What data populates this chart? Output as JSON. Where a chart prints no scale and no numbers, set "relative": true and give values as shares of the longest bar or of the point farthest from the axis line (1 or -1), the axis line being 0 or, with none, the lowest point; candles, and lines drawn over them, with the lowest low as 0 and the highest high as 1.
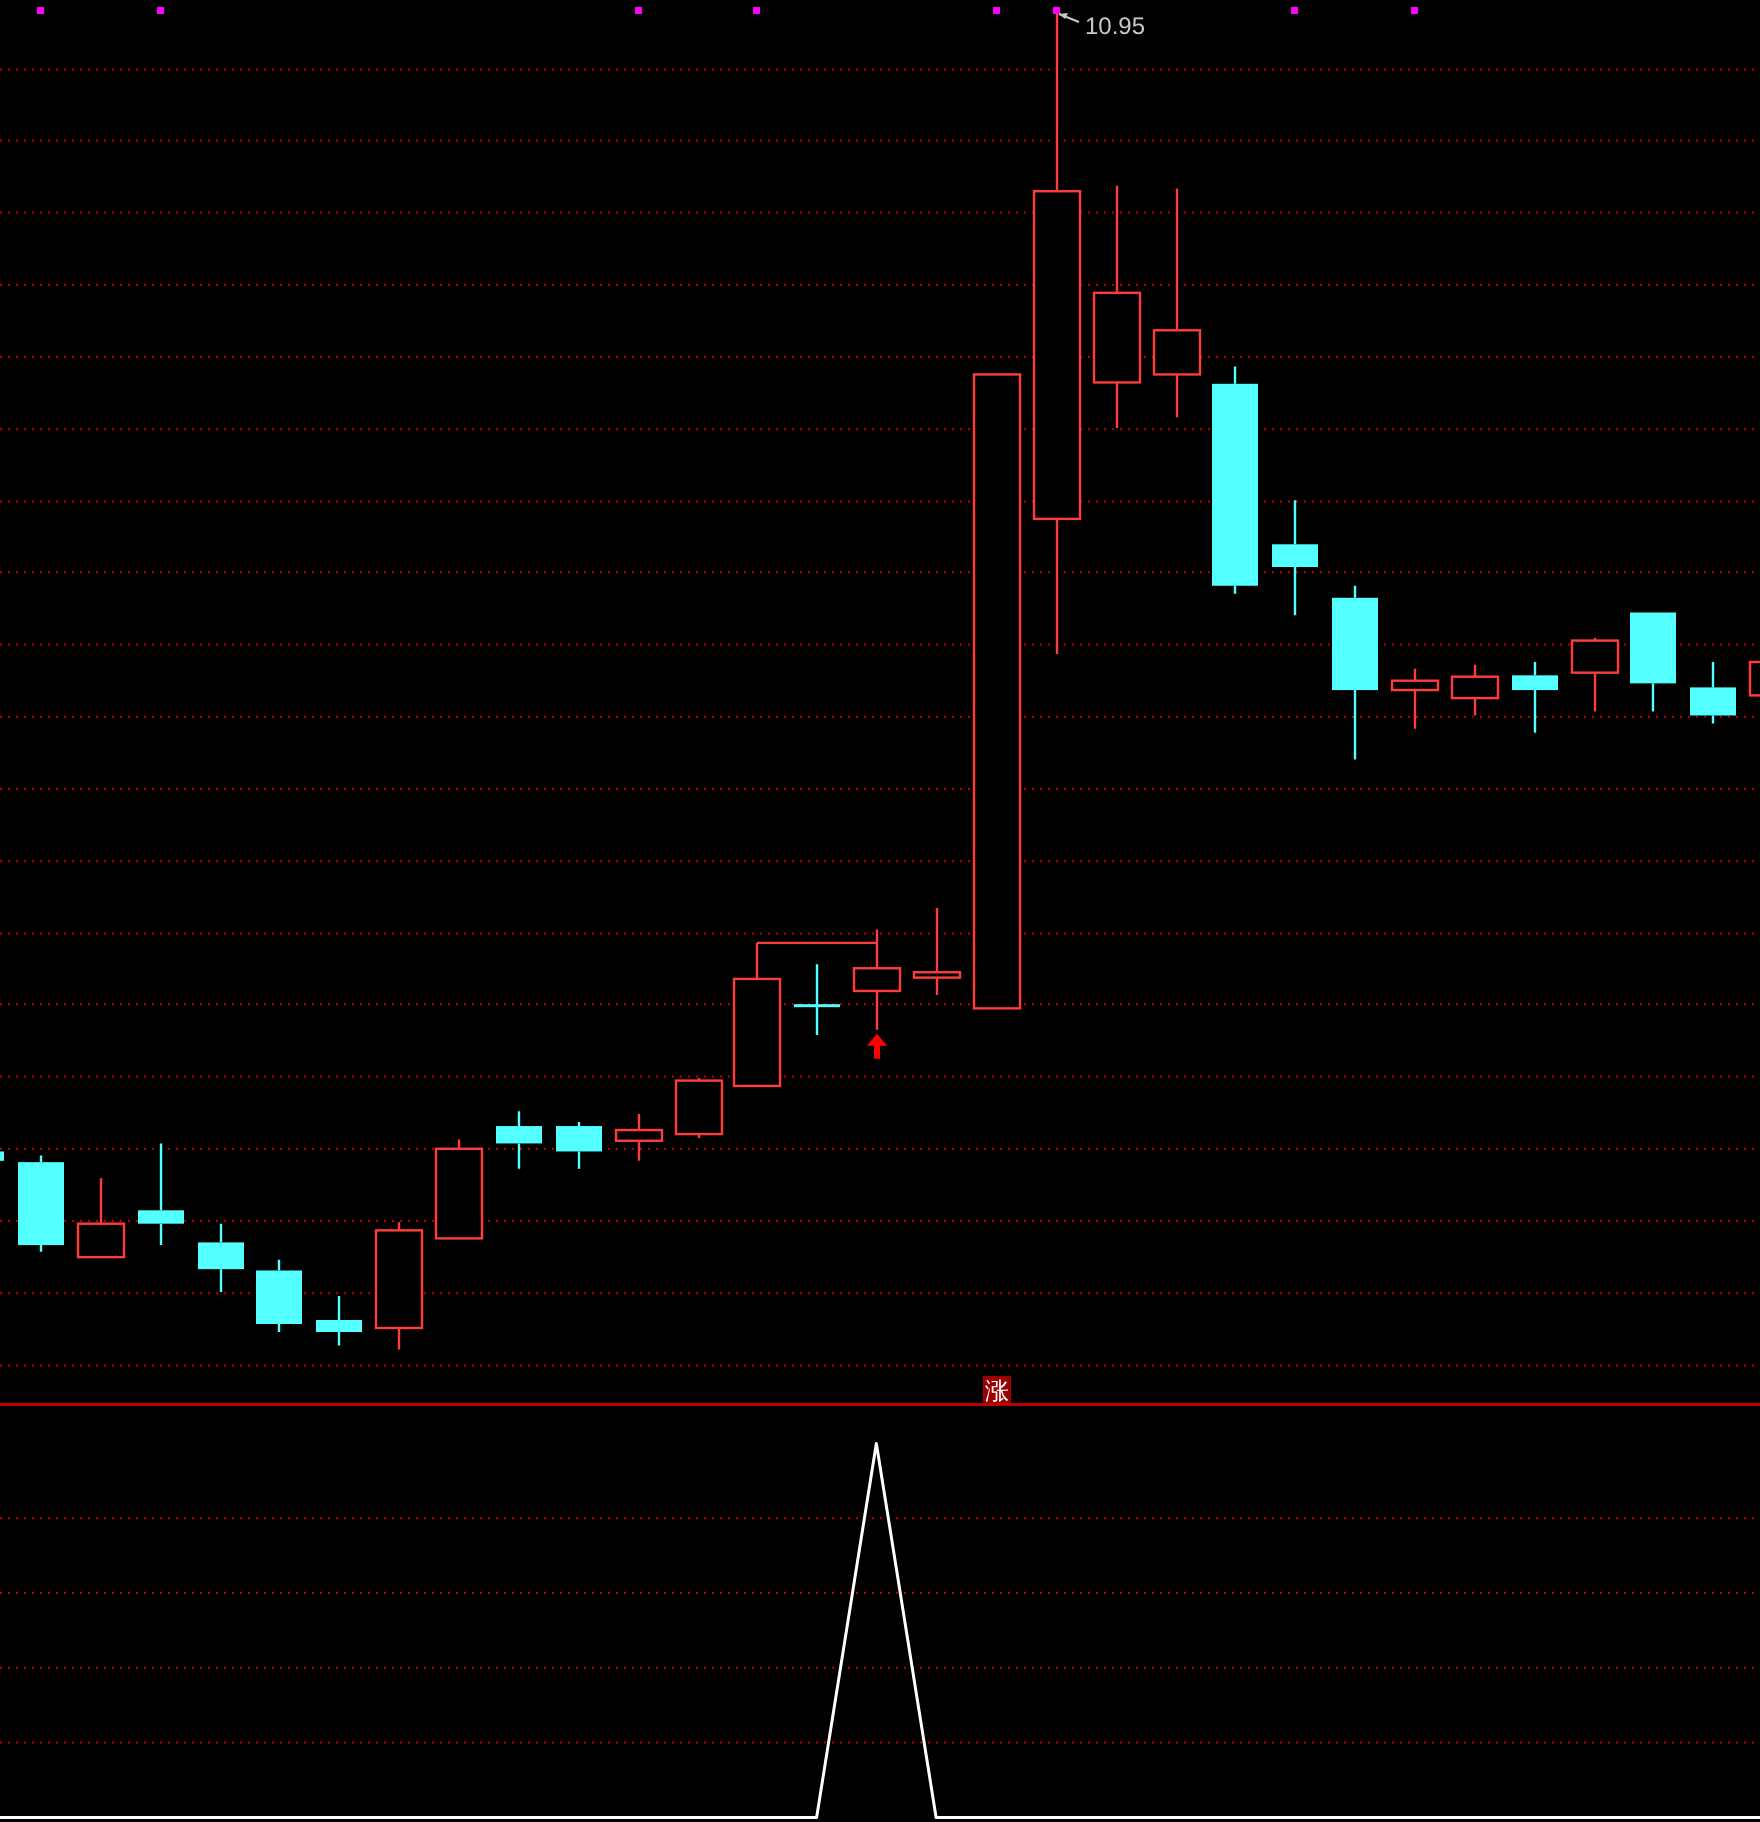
{
  "chart_data": [
    {
      "type": "candlestick",
      "relative": true,
      "categories": [
        null,
        null,
        null,
        null,
        null,
        null,
        null,
        null,
        null,
        null,
        null,
        null,
        null,
        null,
        null,
        null,
        null,
        null,
        null,
        null,
        null,
        null,
        null,
        null,
        null,
        null,
        null,
        null,
        null,
        null,
        null
      ],
      "ohlc": [
        [
          0.148,
          0.148,
          0.141,
          0.141
        ],
        [
          0.14,
          0.145,
          0.073,
          0.078
        ],
        [
          0.069,
          0.128,
          0.069,
          0.094
        ],
        [
          0.104,
          0.154,
          0.078,
          0.094
        ],
        [
          0.08,
          0.094,
          0.043,
          0.06
        ],
        [
          0.059,
          0.067,
          0.013,
          0.019
        ],
        [
          0.022,
          0.04,
          0.003,
          0.013
        ],
        [
          0.016,
          0.095,
          0,
          0.089
        ],
        [
          0.083,
          0.157,
          0.083,
          0.15
        ],
        [
          0.167,
          0.178,
          0.135,
          0.154
        ],
        [
          0.167,
          0.17,
          0.135,
          0.148
        ],
        [
          0.156,
          0.176,
          0.141,
          0.164
        ],
        [
          0.161,
          0.203,
          0.158,
          0.201
        ],
        [
          0.197,
          0.304,
          0.197,
          0.277
        ],
        [
          0.257,
          0.288,
          0.235,
          0.257
        ],
        [
          0.268,
          0.314,
          0.239,
          0.285
        ],
        [
          0.278,
          0.33,
          0.265,
          0.282
        ],
        [
          0.255,
          0.729,
          0.255,
          0.729
        ],
        [
          0.621,
          1,
          0.52,
          0.866
        ],
        [
          0.723,
          0.87,
          0.689,
          0.79
        ],
        [
          0.729,
          0.868,
          0.697,
          0.762
        ],
        [
          0.722,
          0.735,
          0.565,
          0.571
        ],
        [
          0.602,
          0.635,
          0.549,
          0.585
        ],
        [
          0.562,
          0.571,
          0.441,
          0.493
        ],
        [
          0.493,
          0.509,
          0.464,
          0.5
        ],
        [
          0.487,
          0.512,
          0.474,
          0.503
        ],
        [
          0.504,
          0.514,
          0.461,
          0.493
        ],
        [
          0.506,
          0.532,
          0.477,
          0.53
        ],
        [
          0.551,
          0.551,
          0.477,
          0.498
        ],
        [
          0.495,
          0.514,
          0.468,
          0.474
        ],
        [
          0.489,
          0.514,
          0.489,
          0.514
        ]
      ],
      "colors": [
        "#54ffff",
        "#54ffff",
        "#ff3c3c",
        "#54ffff",
        "#54ffff",
        "#54ffff",
        "#54ffff",
        "#ff3c3c",
        "#ff3c3c",
        "#54ffff",
        "#54ffff",
        "#ff3c3c",
        "#ff3c3c",
        "#ff3c3c",
        "#54ffff",
        "#ff3c3c",
        "#ff3c3c",
        "#ff3c3c",
        "#ff3c3c",
        "#ff3c3c",
        "#ff3c3c",
        "#54ffff",
        "#54ffff",
        "#54ffff",
        "#ff3c3c",
        "#ff3c3c",
        "#54ffff",
        "#ff3c3c",
        "#54ffff",
        "#54ffff",
        "#ff3c3c"
      ],
      "series": [
        {
          "type": "scatter",
          "marker": "square",
          "color": "#ff00ff",
          "values": [
            null,
            1,
            null,
            1,
            null,
            null,
            null,
            null,
            null,
            null,
            null,
            1,
            null,
            1,
            null,
            null,
            null,
            1,
            1,
            null,
            null,
            null,
            1,
            null,
            1,
            null,
            null,
            null,
            null,
            null,
            null
          ]
        }
      ],
      "ref_lines": [
        {
          "axis": "y",
          "value": 0.957,
          "color": "#c00000",
          "line_style": "dotted"
        },
        {
          "axis": "y",
          "value": 0.904,
          "color": "#c00000",
          "line_style": "dotted"
        },
        {
          "axis": "y",
          "value": 0.85,
          "color": "#c00000",
          "line_style": "dotted"
        },
        {
          "axis": "y",
          "value": 0.796,
          "color": "#c00000",
          "line_style": "dotted"
        },
        {
          "axis": "y",
          "value": 0.742,
          "color": "#c00000",
          "line_style": "dotted"
        },
        {
          "axis": "y",
          "value": 0.688,
          "color": "#c00000",
          "line_style": "dotted"
        },
        {
          "axis": "y",
          "value": 0.634,
          "color": "#c00000",
          "line_style": "dotted"
        },
        {
          "axis": "y",
          "value": 0.581,
          "color": "#c00000",
          "line_style": "dotted"
        },
        {
          "axis": "y",
          "value": 0.527,
          "color": "#c00000",
          "line_style": "dotted"
        },
        {
          "axis": "y",
          "value": 0.473,
          "color": "#c00000",
          "line_style": "dotted"
        },
        {
          "axis": "y",
          "value": 0.419,
          "color": "#c00000",
          "line_style": "dotted"
        },
        {
          "axis": "y",
          "value": 0.365,
          "color": "#c00000",
          "line_style": "dotted"
        },
        {
          "axis": "y",
          "value": 0.311,
          "color": "#c00000",
          "line_style": "dotted"
        },
        {
          "axis": "y",
          "value": 0.258,
          "color": "#c00000",
          "line_style": "dotted"
        },
        {
          "axis": "y",
          "value": 0.204,
          "color": "#c00000",
          "line_style": "dotted"
        },
        {
          "axis": "y",
          "value": 0.15,
          "color": "#c00000",
          "line_style": "dotted"
        },
        {
          "axis": "y",
          "value": 0.096,
          "color": "#c00000",
          "line_style": "dotted"
        },
        {
          "axis": "y",
          "value": 0.042,
          "color": "#c00000",
          "line_style": "dotted"
        },
        {
          "axis": "y",
          "value": -0.012,
          "color": "#c00000",
          "line_style": "dotted"
        }
      ],
      "annotations": [
        "10.95",
        "涨"
      ]
    },
    {
      "type": "line",
      "relative": true,
      "color": "#ffffff",
      "categories": [
        null,
        null,
        null,
        null,
        null,
        null,
        null,
        null,
        null,
        null,
        null,
        null,
        null,
        null,
        null,
        null,
        null,
        null,
        null,
        null,
        null,
        null,
        null,
        null,
        null,
        null,
        null,
        null,
        null,
        null,
        null
      ],
      "ref_lines": [
        {
          "axis": "y",
          "value": 0.8,
          "color": "#c00000",
          "line_style": "dotted"
        },
        {
          "axis": "y",
          "value": 0.6,
          "color": "#c00000",
          "line_style": "dotted"
        },
        {
          "axis": "y",
          "value": 0.4,
          "color": "#c00000",
          "line_style": "dotted"
        },
        {
          "axis": "y",
          "value": 0.2,
          "color": "#c00000",
          "line_style": "dotted"
        }
      ],
      "values": [
        0,
        0,
        0,
        0,
        0,
        0,
        0,
        0,
        0,
        0,
        0,
        0,
        0,
        0,
        0,
        1,
        0,
        0,
        0,
        0,
        0,
        0,
        0,
        0,
        0,
        0,
        0,
        0,
        0,
        0,
        0
      ]
    }
  ]
}
